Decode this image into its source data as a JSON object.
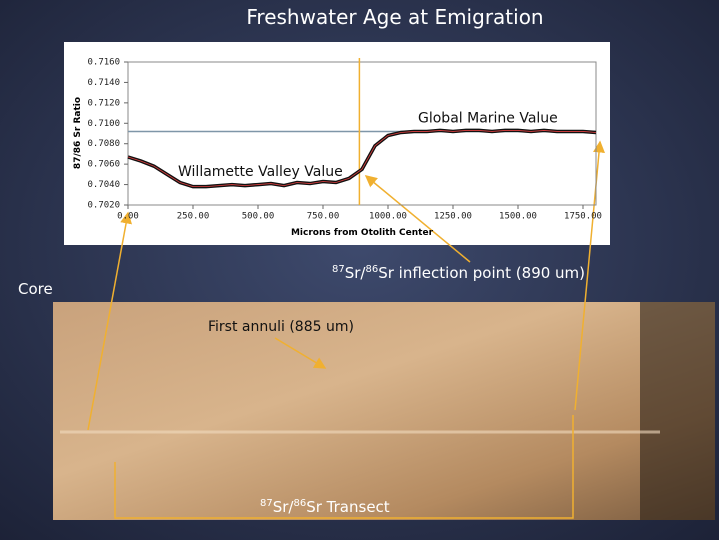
{
  "slide": {
    "title": "Freshwater Age at Emigration",
    "core_label": "Core",
    "annuli_label": "First annuli (885 um)",
    "inflection_label": {
      "sup1": "87",
      "mid": "Sr/",
      "sup2": "86",
      "rest": "Sr inflection point (890 um)"
    },
    "transect_label": {
      "sup1": "87",
      "mid": "Sr/",
      "sup2": "86",
      "rest": "Sr Transect"
    }
  },
  "chart_data": {
    "type": "line",
    "y_label": "87/86 Sr Ratio",
    "x_label": "Microns from Otolith Center",
    "x": [
      0,
      50,
      100,
      150,
      200,
      250,
      300,
      350,
      400,
      450,
      500,
      550,
      600,
      650,
      700,
      750,
      800,
      850,
      900,
      950,
      1000,
      1050,
      1100,
      1150,
      1200,
      1250,
      1300,
      1350,
      1400,
      1450,
      1500,
      1550,
      1600,
      1650,
      1700,
      1750,
      1800
    ],
    "series": [
      {
        "name": "87/86 Sr Ratio",
        "color": "#111111",
        "values": [
          0.7067,
          0.7063,
          0.7058,
          0.705,
          0.7042,
          0.7038,
          0.7038,
          0.7039,
          0.704,
          0.7039,
          0.704,
          0.7041,
          0.7039,
          0.7042,
          0.7041,
          0.7043,
          0.7042,
          0.7046,
          0.7055,
          0.7078,
          0.7088,
          0.7091,
          0.7092,
          0.7092,
          0.7093,
          0.7092,
          0.7093,
          0.7093,
          0.7092,
          0.7093,
          0.7093,
          0.7092,
          0.7093,
          0.7092,
          0.7092,
          0.7092,
          0.7091
        ]
      }
    ],
    "reference_lines": [
      {
        "axis": "y",
        "value": 0.7092,
        "color": "#7f96a8",
        "label": "Global Marine Value"
      },
      {
        "axis": "x",
        "value": 890,
        "color": "#f0b030"
      }
    ],
    "series_annotation": "Willamette Valley Value",
    "xlim": [
      0,
      1800
    ],
    "ylim": [
      0.702,
      0.716
    ],
    "xticks": [
      {
        "value": 0,
        "label": "0.00"
      },
      {
        "value": 250,
        "label": "250.00"
      },
      {
        "value": 500,
        "label": "500.00"
      },
      {
        "value": 750,
        "label": "750.00"
      },
      {
        "value": 1000,
        "label": "1000.00"
      },
      {
        "value": 1250,
        "label": "1250.00"
      },
      {
        "value": 1500,
        "label": "1500.00"
      },
      {
        "value": 1750,
        "label": "1750.00"
      }
    ],
    "yticks": [
      {
        "value": 0.702,
        "label": "0.7020"
      },
      {
        "value": 0.704,
        "label": "0.7040"
      },
      {
        "value": 0.706,
        "label": "0.7060"
      },
      {
        "value": 0.708,
        "label": "0.7080"
      },
      {
        "value": 0.71,
        "label": "0.7100"
      },
      {
        "value": 0.712,
        "label": "0.7120"
      },
      {
        "value": 0.714,
        "label": "0.7140"
      },
      {
        "value": 0.716,
        "label": "0.7160"
      }
    ]
  }
}
